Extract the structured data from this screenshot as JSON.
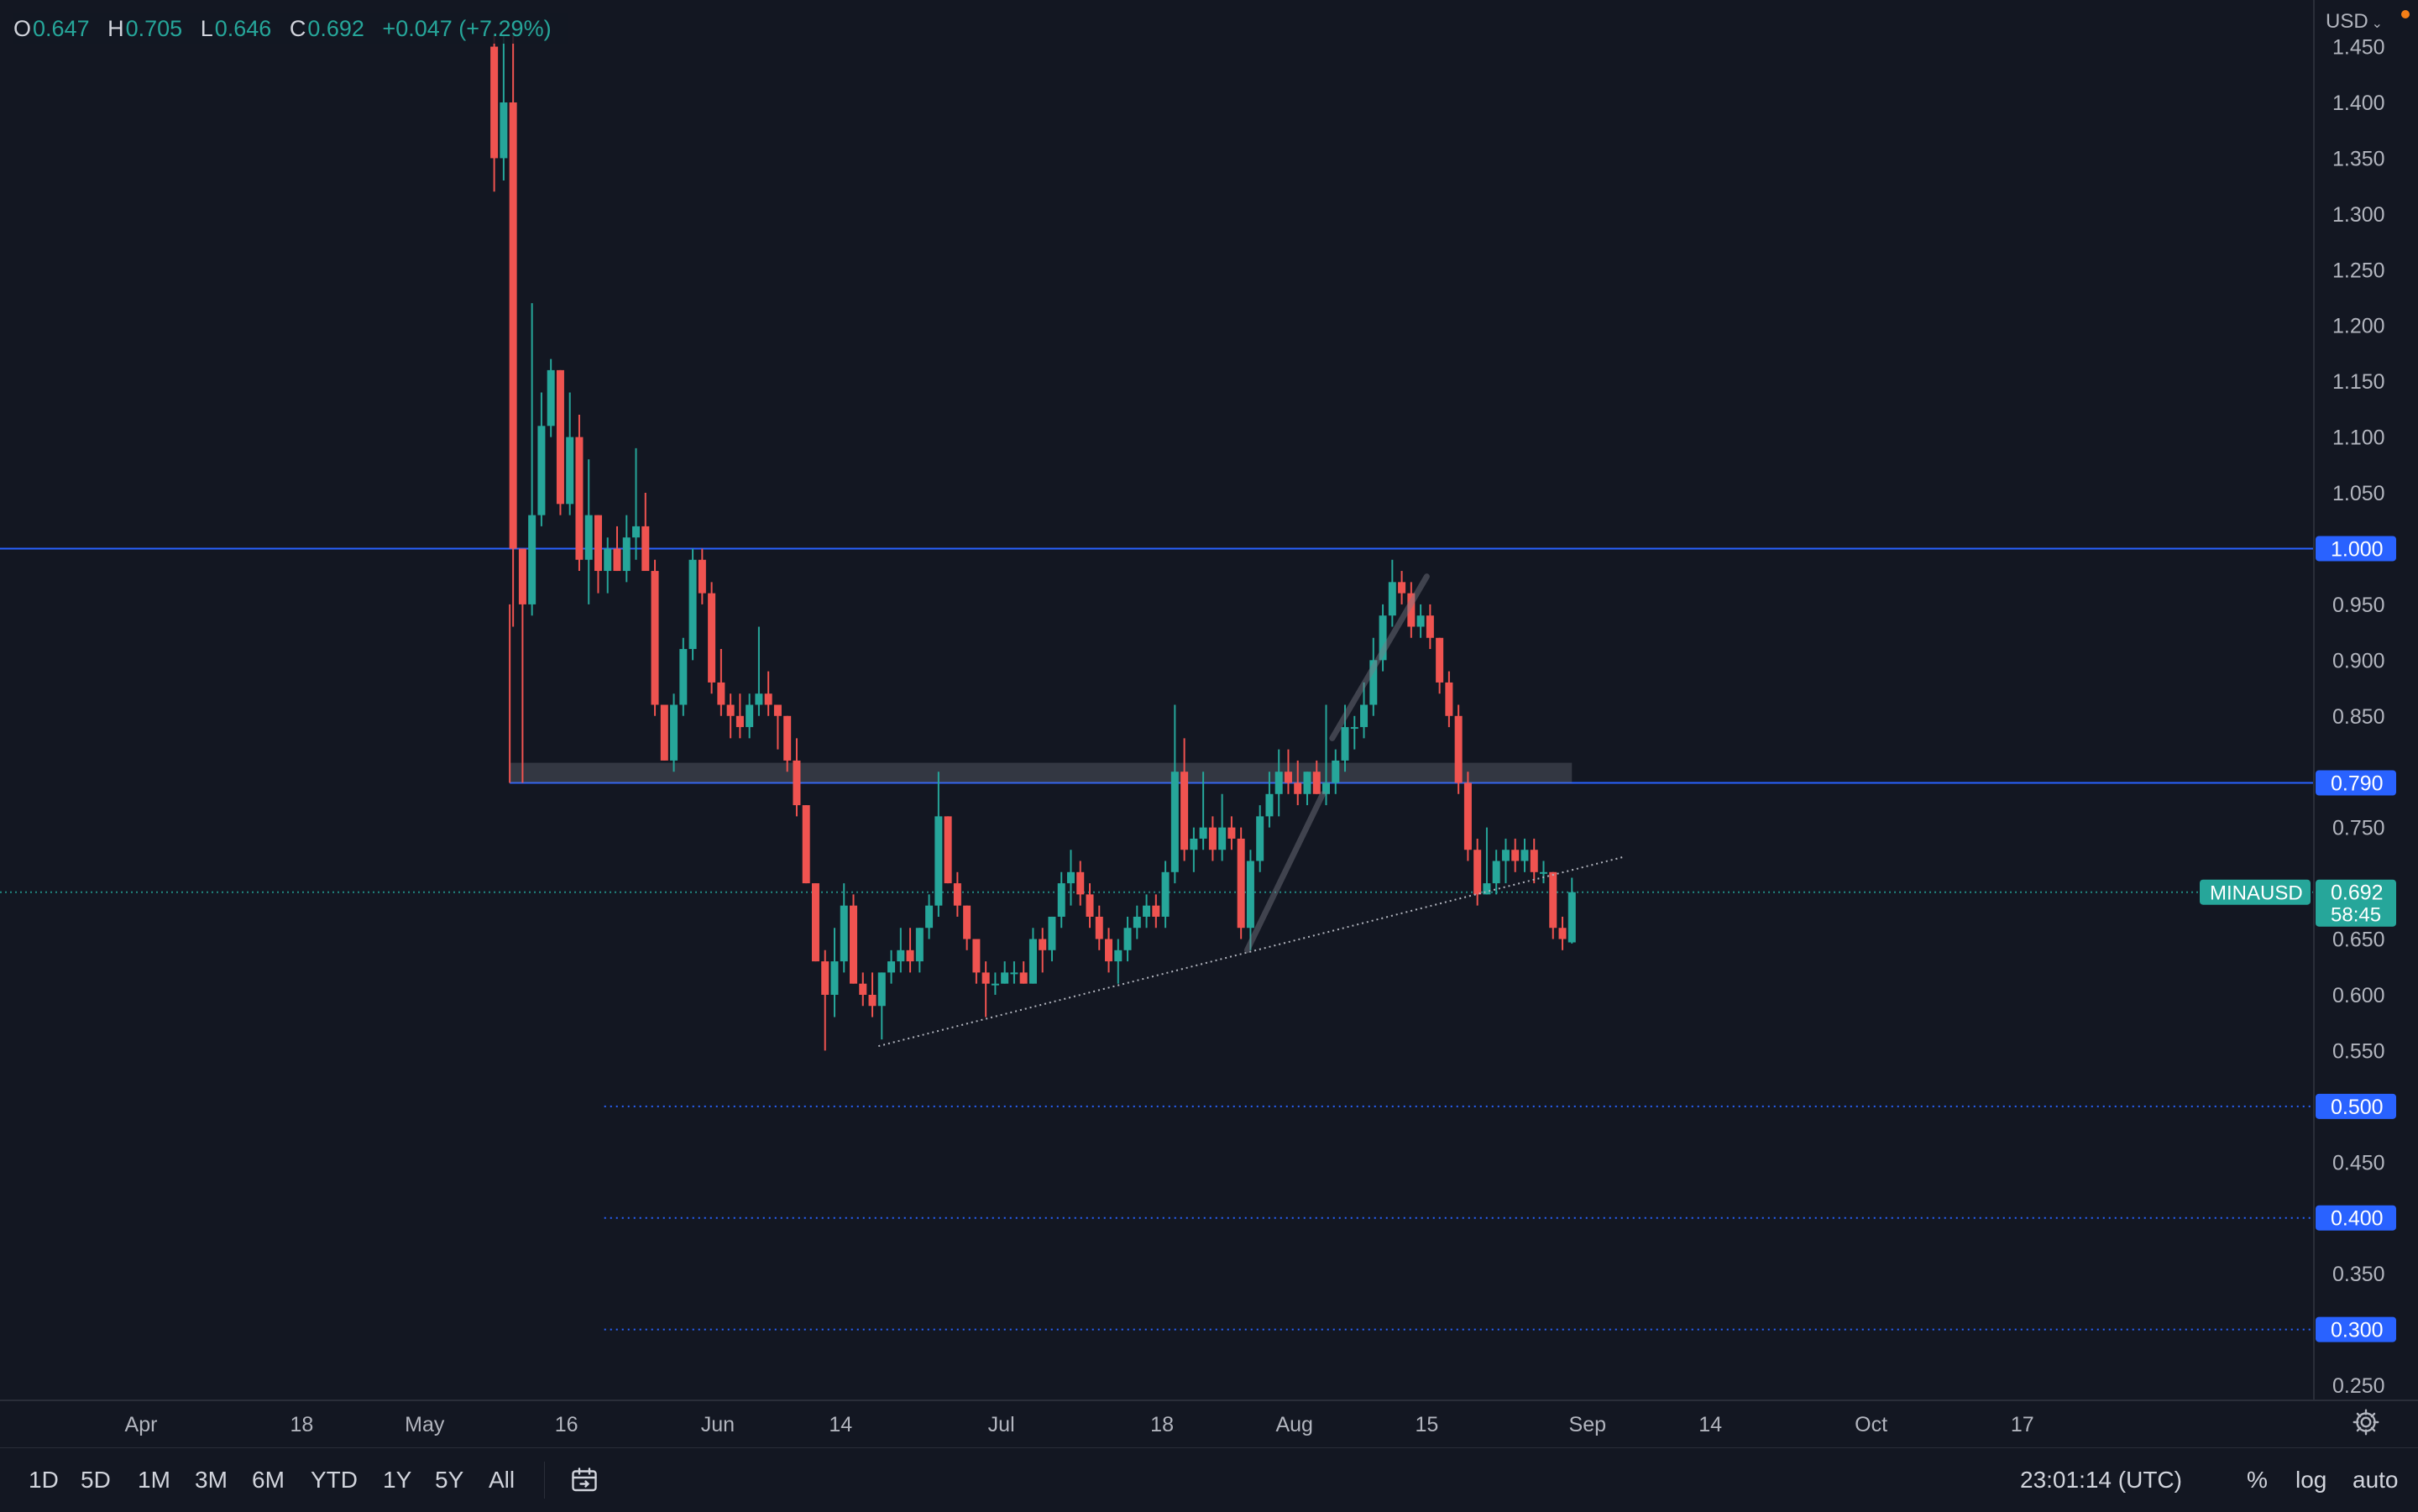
{
  "ohlc": {
    "o_label": "O",
    "o": "0.647",
    "h_label": "H",
    "h": "0.705",
    "l_label": "L",
    "l": "0.646",
    "c_label": "C",
    "c": "0.692",
    "change": "+0.047 (+7.29%)"
  },
  "currency": "USD",
  "symbol_label": "MINAUSD",
  "last_price_label": "0.692",
  "countdown": "58:45",
  "toolbar": {
    "timeframes": [
      "1D",
      "5D",
      "1M",
      "3M",
      "6M",
      "YTD",
      "1Y",
      "5Y",
      "All"
    ],
    "clock": "23:01:14 (UTC)",
    "percent": "%",
    "log": "log",
    "auto": "auto"
  },
  "colors": {
    "background": "#131722",
    "up": "#26a69a",
    "down": "#ef5350",
    "level_line": "#2962ff",
    "grid_text": "#b2b5be"
  },
  "chart_data": {
    "type": "candlestick",
    "ylim": [
      0.24,
      1.46
    ],
    "y_ticks": [
      1.45,
      1.4,
      1.35,
      1.3,
      1.25,
      1.2,
      1.15,
      1.1,
      1.05,
      0.95,
      0.9,
      0.85,
      0.75,
      0.65,
      0.6,
      0.55,
      0.45,
      0.35,
      0.25
    ],
    "y_tick_labels": [
      "1.450",
      "1.400",
      "1.350",
      "1.300",
      "1.250",
      "1.200",
      "1.150",
      "1.100",
      "1.050",
      "0.950",
      "0.900",
      "0.850",
      "0.750",
      "0.650",
      "0.600",
      "0.550",
      "0.450",
      "0.350",
      "0.250"
    ],
    "x_ticks": [
      {
        "label": "Apr",
        "date": "2022-04-01"
      },
      {
        "label": "18",
        "date": "2022-04-18"
      },
      {
        "label": "May",
        "date": "2022-05-01"
      },
      {
        "label": "16",
        "date": "2022-05-16"
      },
      {
        "label": "Jun",
        "date": "2022-06-01"
      },
      {
        "label": "14",
        "date": "2022-06-14"
      },
      {
        "label": "Jul",
        "date": "2022-07-01"
      },
      {
        "label": "18",
        "date": "2022-07-18"
      },
      {
        "label": "Aug",
        "date": "2022-08-01"
      },
      {
        "label": "15",
        "date": "2022-08-15"
      },
      {
        "label": "Sep",
        "date": "2022-09-01"
      },
      {
        "label": "14",
        "date": "2022-09-14"
      },
      {
        "label": "Oct",
        "date": "2022-10-01"
      },
      {
        "label": "17",
        "date": "2022-10-17"
      }
    ],
    "candles": [
      [
        "2022-05-08",
        1.45,
        1.46,
        1.32,
        1.35
      ],
      [
        "2022-05-09",
        1.35,
        1.46,
        1.33,
        1.4
      ],
      [
        "2022-05-10",
        1.4,
        1.46,
        0.93,
        1.0
      ],
      [
        "2022-05-11",
        1.0,
        1.0,
        0.79,
        0.95
      ],
      [
        "2022-05-12",
        0.95,
        1.22,
        0.94,
        1.03
      ],
      [
        "2022-05-13",
        1.03,
        1.14,
        1.02,
        1.11
      ],
      [
        "2022-05-14",
        1.11,
        1.17,
        1.1,
        1.16
      ],
      [
        "2022-05-15",
        1.16,
        1.16,
        1.03,
        1.04
      ],
      [
        "2022-05-16",
        1.04,
        1.14,
        1.03,
        1.1
      ],
      [
        "2022-05-17",
        1.1,
        1.12,
        0.98,
        0.99
      ],
      [
        "2022-05-18",
        0.99,
        1.08,
        0.95,
        1.03
      ],
      [
        "2022-05-19",
        1.03,
        1.03,
        0.96,
        0.98
      ],
      [
        "2022-05-20",
        0.98,
        1.01,
        0.96,
        1.0
      ],
      [
        "2022-05-21",
        1.0,
        1.02,
        0.98,
        0.98
      ],
      [
        "2022-05-22",
        0.98,
        1.03,
        0.97,
        1.01
      ],
      [
        "2022-05-23",
        1.01,
        1.09,
        0.99,
        1.02
      ],
      [
        "2022-05-24",
        1.02,
        1.05,
        0.98,
        0.98
      ],
      [
        "2022-05-25",
        0.98,
        0.99,
        0.85,
        0.86
      ],
      [
        "2022-05-26",
        0.86,
        0.86,
        0.81,
        0.81
      ],
      [
        "2022-05-27",
        0.81,
        0.87,
        0.8,
        0.86
      ],
      [
        "2022-05-28",
        0.86,
        0.92,
        0.85,
        0.91
      ],
      [
        "2022-05-29",
        0.91,
        1.0,
        0.9,
        0.99
      ],
      [
        "2022-05-30",
        0.99,
        1.0,
        0.95,
        0.96
      ],
      [
        "2022-05-31",
        0.96,
        0.97,
        0.87,
        0.88
      ],
      [
        "2022-06-01",
        0.88,
        0.91,
        0.85,
        0.86
      ],
      [
        "2022-06-02",
        0.86,
        0.87,
        0.83,
        0.85
      ],
      [
        "2022-06-03",
        0.85,
        0.87,
        0.83,
        0.84
      ],
      [
        "2022-06-04",
        0.84,
        0.87,
        0.83,
        0.86
      ],
      [
        "2022-06-05",
        0.86,
        0.93,
        0.85,
        0.87
      ],
      [
        "2022-06-06",
        0.87,
        0.89,
        0.85,
        0.86
      ],
      [
        "2022-06-07",
        0.86,
        0.86,
        0.82,
        0.85
      ],
      [
        "2022-06-08",
        0.85,
        0.85,
        0.8,
        0.81
      ],
      [
        "2022-06-09",
        0.81,
        0.83,
        0.76,
        0.77
      ],
      [
        "2022-06-10",
        0.77,
        0.77,
        0.7,
        0.7
      ],
      [
        "2022-06-11",
        0.7,
        0.7,
        0.63,
        0.63
      ],
      [
        "2022-06-12",
        0.63,
        0.64,
        0.55,
        0.6
      ],
      [
        "2022-06-13",
        0.6,
        0.66,
        0.58,
        0.63
      ],
      [
        "2022-06-14",
        0.63,
        0.7,
        0.62,
        0.68
      ],
      [
        "2022-06-15",
        0.68,
        0.69,
        0.61,
        0.61
      ],
      [
        "2022-06-16",
        0.61,
        0.62,
        0.59,
        0.6
      ],
      [
        "2022-06-17",
        0.6,
        0.62,
        0.58,
        0.59
      ],
      [
        "2022-06-18",
        0.59,
        0.62,
        0.56,
        0.62
      ],
      [
        "2022-06-19",
        0.62,
        0.64,
        0.61,
        0.63
      ],
      [
        "2022-06-20",
        0.63,
        0.66,
        0.62,
        0.64
      ],
      [
        "2022-06-21",
        0.64,
        0.66,
        0.62,
        0.63
      ],
      [
        "2022-06-22",
        0.63,
        0.66,
        0.62,
        0.66
      ],
      [
        "2022-06-23",
        0.66,
        0.69,
        0.65,
        0.68
      ],
      [
        "2022-06-24",
        0.68,
        0.8,
        0.67,
        0.76
      ],
      [
        "2022-06-25",
        0.76,
        0.76,
        0.7,
        0.7
      ],
      [
        "2022-06-26",
        0.7,
        0.71,
        0.67,
        0.68
      ],
      [
        "2022-06-27",
        0.68,
        0.68,
        0.64,
        0.65
      ],
      [
        "2022-06-28",
        0.65,
        0.65,
        0.61,
        0.62
      ],
      [
        "2022-06-29",
        0.62,
        0.63,
        0.58,
        0.61
      ],
      [
        "2022-06-30",
        0.61,
        0.62,
        0.6,
        0.61
      ],
      [
        "2022-07-01",
        0.61,
        0.63,
        0.61,
        0.62
      ],
      [
        "2022-07-02",
        0.62,
        0.63,
        0.61,
        0.62
      ],
      [
        "2022-07-03",
        0.62,
        0.63,
        0.61,
        0.61
      ],
      [
        "2022-07-04",
        0.61,
        0.66,
        0.61,
        0.65
      ],
      [
        "2022-07-05",
        0.65,
        0.66,
        0.62,
        0.64
      ],
      [
        "2022-07-06",
        0.64,
        0.67,
        0.63,
        0.67
      ],
      [
        "2022-07-07",
        0.67,
        0.71,
        0.66,
        0.7
      ],
      [
        "2022-07-08",
        0.7,
        0.73,
        0.68,
        0.71
      ],
      [
        "2022-07-09",
        0.71,
        0.72,
        0.68,
        0.69
      ],
      [
        "2022-07-10",
        0.69,
        0.7,
        0.66,
        0.67
      ],
      [
        "2022-07-11",
        0.67,
        0.68,
        0.64,
        0.65
      ],
      [
        "2022-07-12",
        0.65,
        0.66,
        0.62,
        0.63
      ],
      [
        "2022-07-13",
        0.63,
        0.65,
        0.61,
        0.64
      ],
      [
        "2022-07-14",
        0.64,
        0.67,
        0.63,
        0.66
      ],
      [
        "2022-07-15",
        0.66,
        0.68,
        0.65,
        0.67
      ],
      [
        "2022-07-16",
        0.67,
        0.69,
        0.66,
        0.68
      ],
      [
        "2022-07-17",
        0.68,
        0.69,
        0.66,
        0.67
      ],
      [
        "2022-07-18",
        0.67,
        0.72,
        0.66,
        0.71
      ],
      [
        "2022-07-19",
        0.71,
        0.86,
        0.7,
        0.8
      ],
      [
        "2022-07-20",
        0.8,
        0.83,
        0.72,
        0.73
      ],
      [
        "2022-07-21",
        0.73,
        0.75,
        0.71,
        0.74
      ],
      [
        "2022-07-22",
        0.74,
        0.8,
        0.73,
        0.75
      ],
      [
        "2022-07-23",
        0.75,
        0.76,
        0.72,
        0.73
      ],
      [
        "2022-07-24",
        0.73,
        0.78,
        0.72,
        0.75
      ],
      [
        "2022-07-25",
        0.75,
        0.76,
        0.73,
        0.74
      ],
      [
        "2022-07-26",
        0.74,
        0.75,
        0.65,
        0.66
      ],
      [
        "2022-07-27",
        0.66,
        0.73,
        0.64,
        0.72
      ],
      [
        "2022-07-28",
        0.72,
        0.77,
        0.71,
        0.76
      ],
      [
        "2022-07-29",
        0.76,
        0.8,
        0.75,
        0.78
      ],
      [
        "2022-07-30",
        0.78,
        0.82,
        0.76,
        0.8
      ],
      [
        "2022-07-31",
        0.8,
        0.82,
        0.78,
        0.79
      ],
      [
        "2022-08-01",
        0.79,
        0.81,
        0.77,
        0.78
      ],
      [
        "2022-08-02",
        0.78,
        0.8,
        0.77,
        0.8
      ],
      [
        "2022-08-03",
        0.8,
        0.81,
        0.78,
        0.78
      ],
      [
        "2022-08-04",
        0.78,
        0.86,
        0.77,
        0.79
      ],
      [
        "2022-08-05",
        0.79,
        0.82,
        0.78,
        0.81
      ],
      [
        "2022-08-06",
        0.81,
        0.86,
        0.8,
        0.84
      ],
      [
        "2022-08-07",
        0.84,
        0.85,
        0.82,
        0.84
      ],
      [
        "2022-08-08",
        0.84,
        0.88,
        0.83,
        0.86
      ],
      [
        "2022-08-09",
        0.86,
        0.92,
        0.85,
        0.9
      ],
      [
        "2022-08-10",
        0.9,
        0.95,
        0.89,
        0.94
      ],
      [
        "2022-08-11",
        0.94,
        0.99,
        0.93,
        0.97
      ],
      [
        "2022-08-12",
        0.97,
        0.98,
        0.95,
        0.96
      ],
      [
        "2022-08-13",
        0.96,
        0.97,
        0.92,
        0.93
      ],
      [
        "2022-08-14",
        0.93,
        0.95,
        0.92,
        0.94
      ],
      [
        "2022-08-15",
        0.94,
        0.95,
        0.91,
        0.92
      ],
      [
        "2022-08-16",
        0.92,
        0.92,
        0.87,
        0.88
      ],
      [
        "2022-08-17",
        0.88,
        0.89,
        0.84,
        0.85
      ],
      [
        "2022-08-18",
        0.85,
        0.86,
        0.78,
        0.79
      ],
      [
        "2022-08-19",
        0.79,
        0.8,
        0.72,
        0.73
      ],
      [
        "2022-08-20",
        0.73,
        0.74,
        0.68,
        0.69
      ],
      [
        "2022-08-21",
        0.69,
        0.75,
        0.69,
        0.7
      ],
      [
        "2022-08-22",
        0.7,
        0.73,
        0.69,
        0.72
      ],
      [
        "2022-08-23",
        0.72,
        0.74,
        0.7,
        0.73
      ],
      [
        "2022-08-24",
        0.73,
        0.74,
        0.71,
        0.72
      ],
      [
        "2022-08-25",
        0.72,
        0.74,
        0.71,
        0.73
      ],
      [
        "2022-08-26",
        0.73,
        0.74,
        0.7,
        0.71
      ],
      [
        "2022-08-27",
        0.71,
        0.72,
        0.7,
        0.71
      ],
      [
        "2022-08-28",
        0.71,
        0.71,
        0.65,
        0.66
      ],
      [
        "2022-08-29",
        0.66,
        0.67,
        0.64,
        0.65
      ],
      [
        "2022-08-30",
        0.647,
        0.705,
        0.646,
        0.692
      ]
    ],
    "horizontal_levels": [
      {
        "price": 1.0,
        "label": "1.000",
        "style": "solid",
        "from": "2022-03-01"
      },
      {
        "price": 0.79,
        "label": "0.790",
        "style": "solid",
        "from": "2022-05-10"
      },
      {
        "price": 0.5,
        "label": "0.500",
        "style": "dotted",
        "from": "2022-05-20"
      },
      {
        "price": 0.4,
        "label": "0.400",
        "style": "dotted",
        "from": "2022-05-20"
      },
      {
        "price": 0.3,
        "label": "0.300",
        "style": "dotted",
        "from": "2022-05-20"
      }
    ],
    "zone": {
      "from": "2022-05-10",
      "to": "2022-08-30",
      "top": 0.808,
      "bottom": 0.79
    },
    "vertical_marker": {
      "date": "2022-05-10",
      "from_price": 0.79,
      "to_price": 0.95
    },
    "trendlines": [
      {
        "style": "dotted",
        "points": [
          [
            "2022-06-18",
            0.554
          ],
          [
            "2022-09-05",
            0.724
          ]
        ]
      },
      {
        "style": "thick",
        "points": [
          [
            "2022-07-27",
            0.64
          ],
          [
            "2022-08-04",
            0.78
          ]
        ]
      },
      {
        "style": "thick",
        "points": [
          [
            "2022-08-05",
            0.83
          ],
          [
            "2022-08-15",
            0.975
          ]
        ]
      }
    ],
    "last_price": 0.692
  }
}
